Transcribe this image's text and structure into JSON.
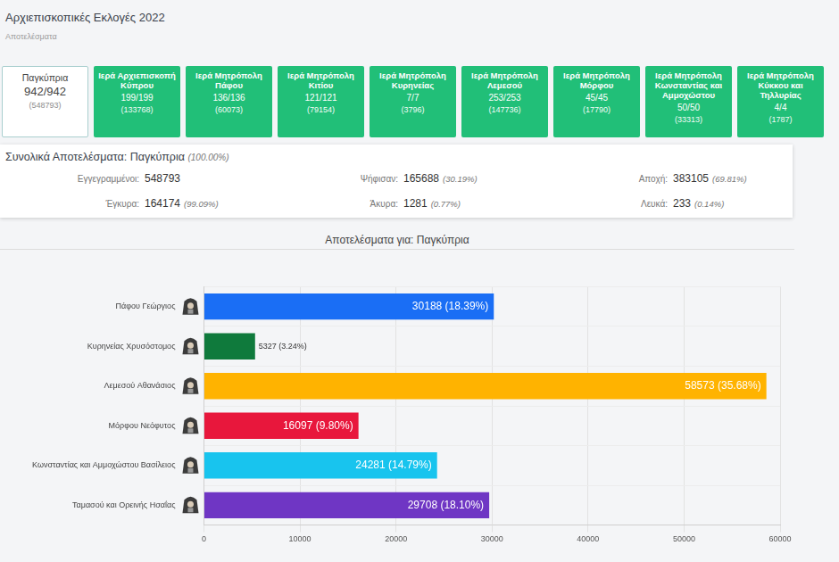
{
  "header": {
    "title": "Αρχιεπισκοπικές Εκλογές 2022",
    "subtitle": "Αποτελέσματα"
  },
  "tabs": [
    {
      "name": "Παγκύπρια",
      "counted": "942/942",
      "registered": "(548793)"
    },
    {
      "name": "Ιερά Αρχιεπισκοπή Κύπρου",
      "counted": "199/199",
      "registered": "(133768)"
    },
    {
      "name": "Ιερά Μητρόπολη Πάφου",
      "counted": "136/136",
      "registered": "(60073)"
    },
    {
      "name": "Ιερά Μητρόπολη Κιτίου",
      "counted": "121/121",
      "registered": "(79154)"
    },
    {
      "name": "Ιερά Μητρόπολη Κυρηνείας",
      "counted": "7/7",
      "registered": "(3796)"
    },
    {
      "name": "Ιερά Μητρόπολη Λεμεσού",
      "counted": "253/253",
      "registered": "(147736)"
    },
    {
      "name": "Ιερά Μητρόπολη Μόρφου",
      "counted": "45/45",
      "registered": "(17790)"
    },
    {
      "name": "Ιερά Μητρόπολη Κωνσταντίας και Αμμοχώστου",
      "counted": "50/50",
      "registered": "(33313)"
    },
    {
      "name": "Ιερά Μητρόπολη Κύκκου και Τηλλυρίας",
      "counted": "4/4",
      "registered": "(1787)"
    }
  ],
  "summary": {
    "title": "Συνολικά Αποτελέσματα: Παγκύπρια",
    "percent": "(100.00%)",
    "rows": [
      {
        "label": "Εγγεγραμμένοι:",
        "value": 548793
      },
      {
        "label": "Ψήφισαν:",
        "value": 165688,
        "percent": "(30.19%)"
      },
      {
        "label": "Αποχή:",
        "value": 383105,
        "percent": "(69.81%)"
      },
      {
        "label": "Έγκυρα:",
        "value": 164174,
        "percent": "(99.09%)"
      },
      {
        "label": "Άκυρα:",
        "value": 1281,
        "percent": "(0.77%)"
      },
      {
        "label": "Λευκά:",
        "value": 233,
        "percent": "(0.14%)"
      }
    ]
  },
  "chart_data": {
    "type": "bar",
    "title": "Αποτελέσματα για: Παγκύπρια",
    "orientation": "horizontal",
    "categories": [
      "Πάφου Γεώργιος",
      "Κυρηνείας Χρυσόστομος",
      "Λεμεσού Αθανάσιος",
      "Μόρφου Νεόφυτος",
      "Κωνσταντίας και Αμμοχώστου Βασίλειος",
      "Ταμασού και Ορεινής Ησαΐας"
    ],
    "values": [
      30188,
      5327,
      58573,
      16097,
      24281,
      29708
    ],
    "value_labels": [
      "30188 (18.39%)",
      "5327 (3.24%)",
      "58573 (35.68%)",
      "16097 (9.80%)",
      "24281 (14.79%)",
      "29708 (18.10%)"
    ],
    "colors": [
      "#1a6ef5",
      "#0f7a3c",
      "#ffb300",
      "#e8173c",
      "#18c4ee",
      "#6f36c4"
    ],
    "xlim": [
      0,
      60000
    ],
    "xticks": [
      0,
      10000,
      20000,
      30000,
      40000,
      50000,
      60000
    ],
    "grid": true,
    "data_labels": true
  }
}
